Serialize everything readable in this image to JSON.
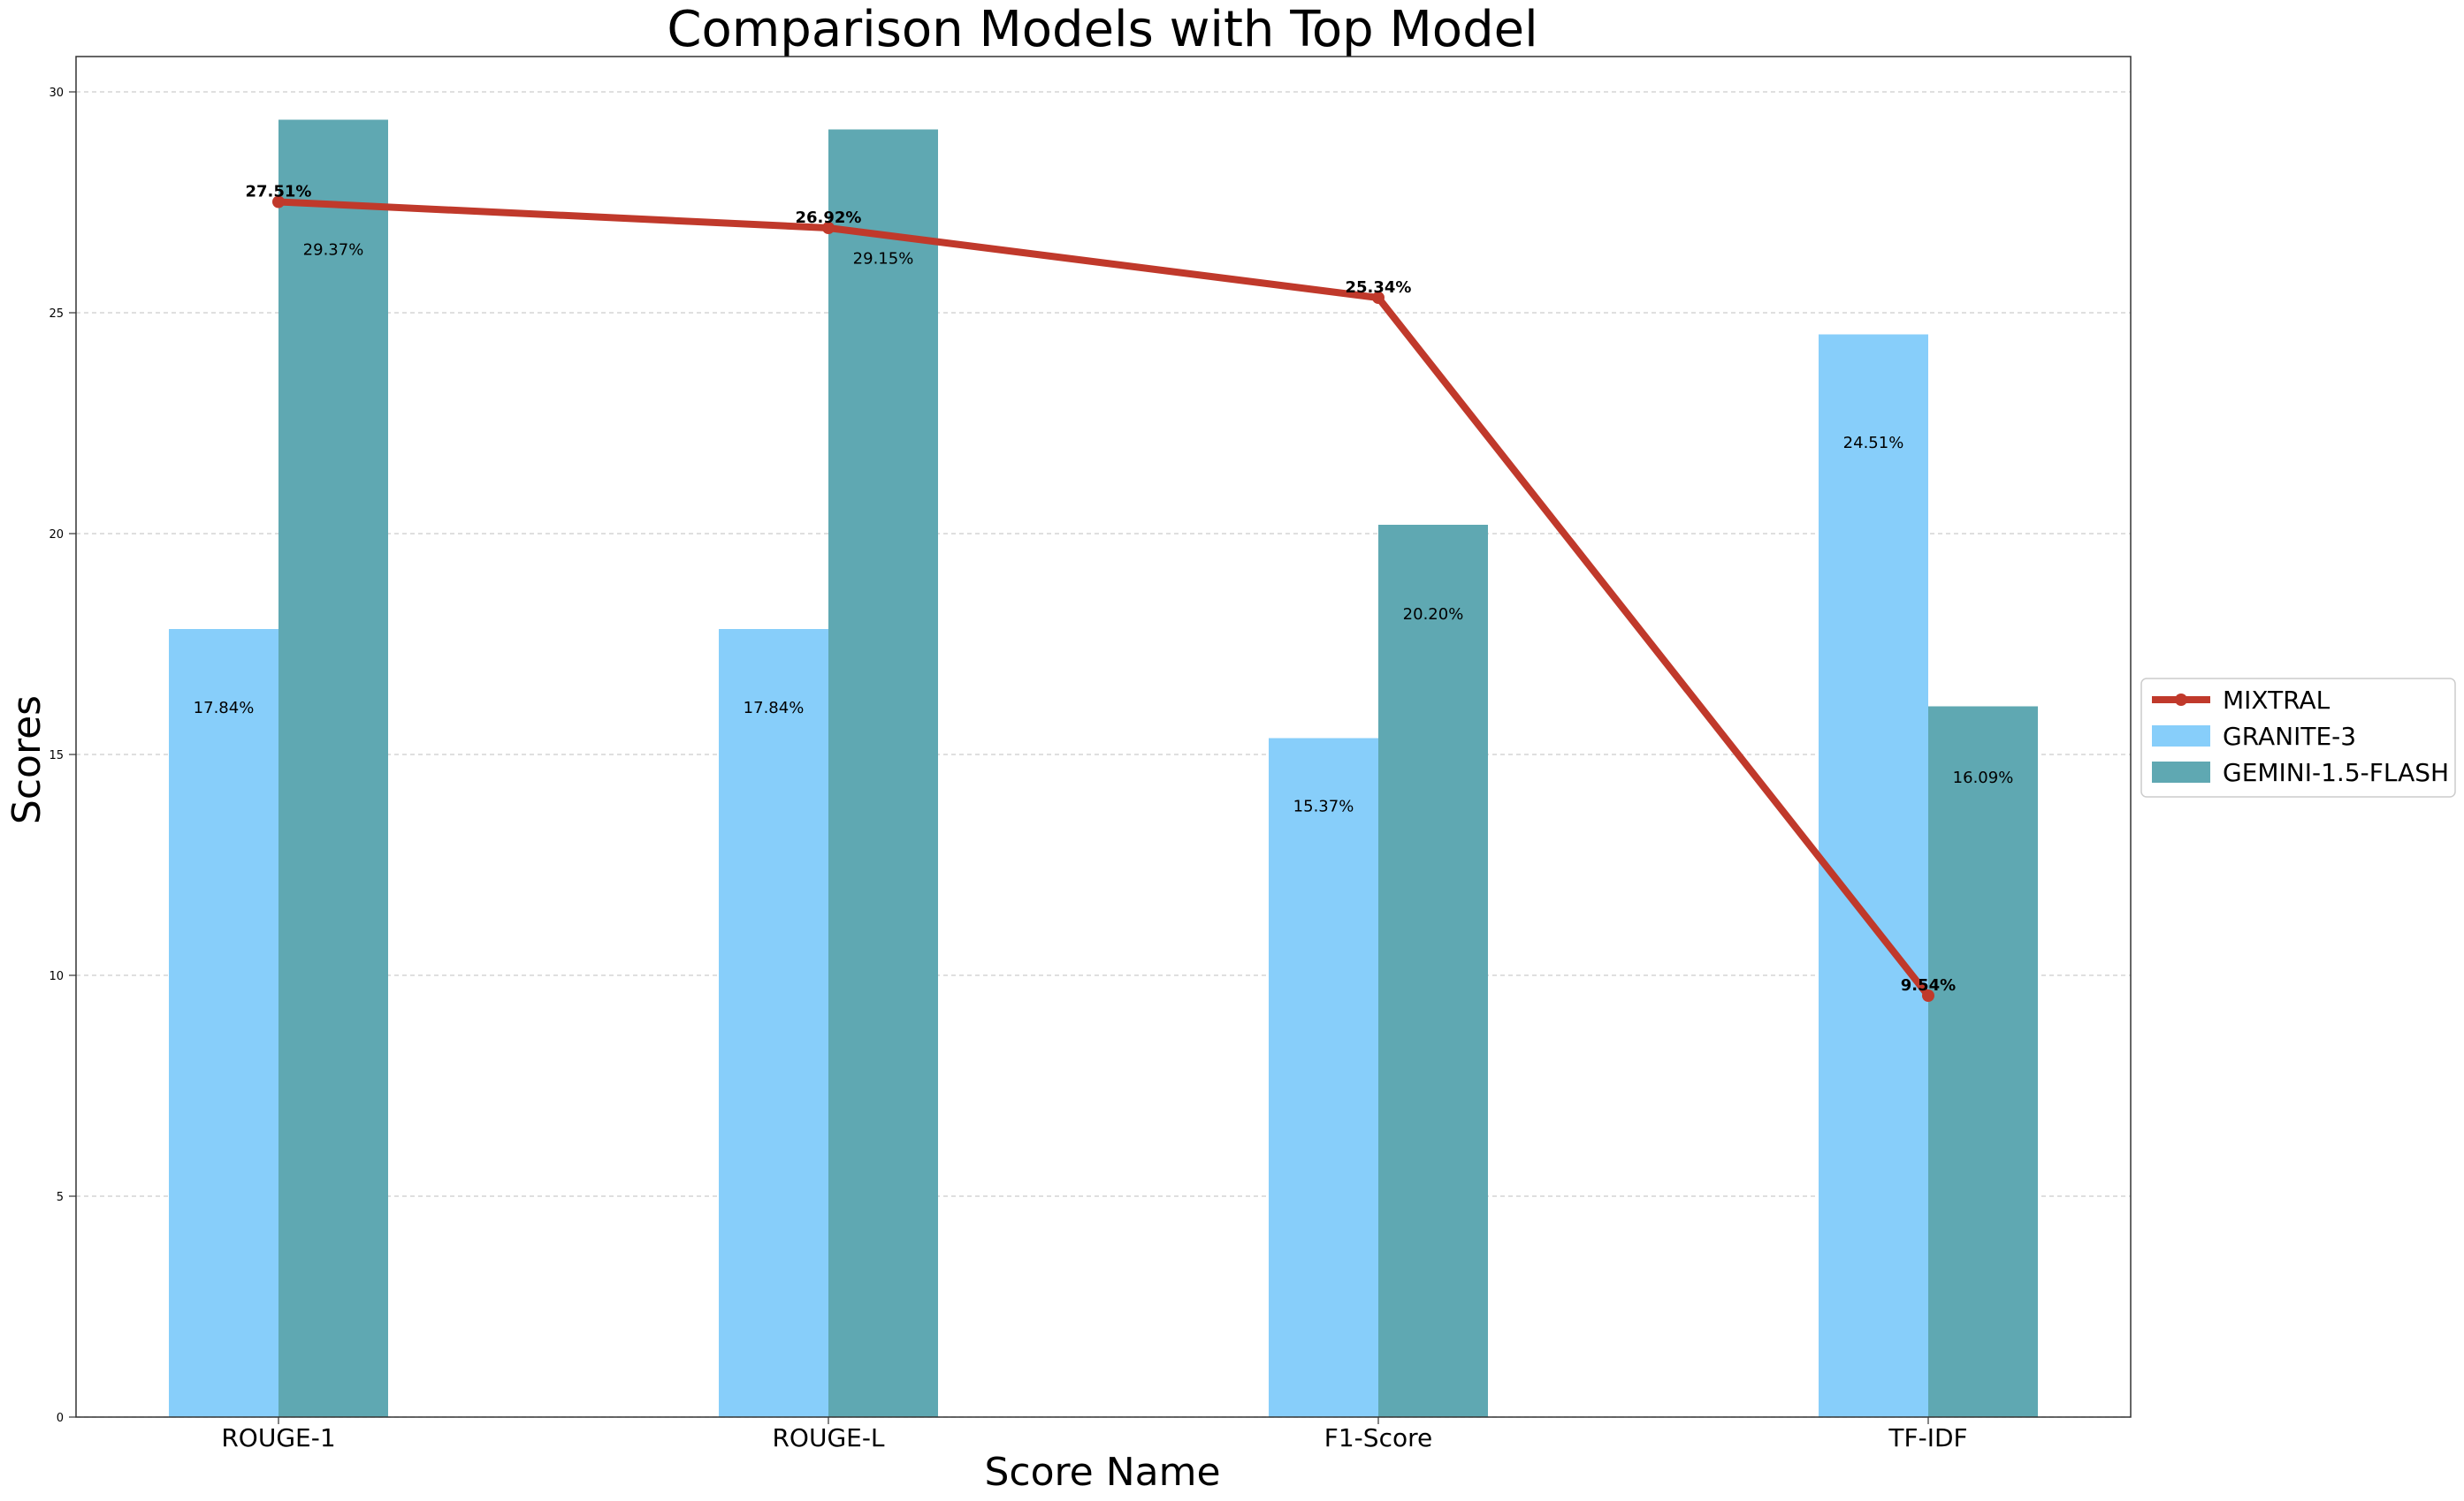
{
  "chart_data": {
    "type": "bar",
    "title": "Comparison Models with Top Model",
    "xlabel": "Score Name",
    "ylabel": "Scores",
    "categories": [
      "ROUGE-1",
      "ROUGE-L",
      "F1-Score",
      "TF-IDF"
    ],
    "ylim": [
      0,
      30.8
    ],
    "yticks": [
      0,
      5,
      10,
      15,
      20,
      25,
      30
    ],
    "grid": "horizontal dashed",
    "legend_position": "right",
    "line_series": {
      "name": "MIXTRAL",
      "type": "line",
      "color": "#c0392b",
      "values": [
        27.51,
        26.92,
        25.34,
        9.54
      ],
      "labels": [
        "27.51%",
        "26.92%",
        "25.34%",
        "9.54%"
      ]
    },
    "bar_series": [
      {
        "name": "GRANITE-3",
        "color": "#87cefa",
        "values": [
          17.84,
          17.84,
          15.37,
          24.51
        ],
        "labels": [
          "17.84%",
          "17.84%",
          "15.37%",
          "24.51%"
        ]
      },
      {
        "name": "GEMINI-1.5-FLASH",
        "color": "#5fa8b2",
        "values": [
          29.37,
          29.15,
          20.2,
          16.09
        ],
        "labels": [
          "29.37%",
          "29.15%",
          "20.20%",
          "16.09%"
        ]
      }
    ]
  }
}
